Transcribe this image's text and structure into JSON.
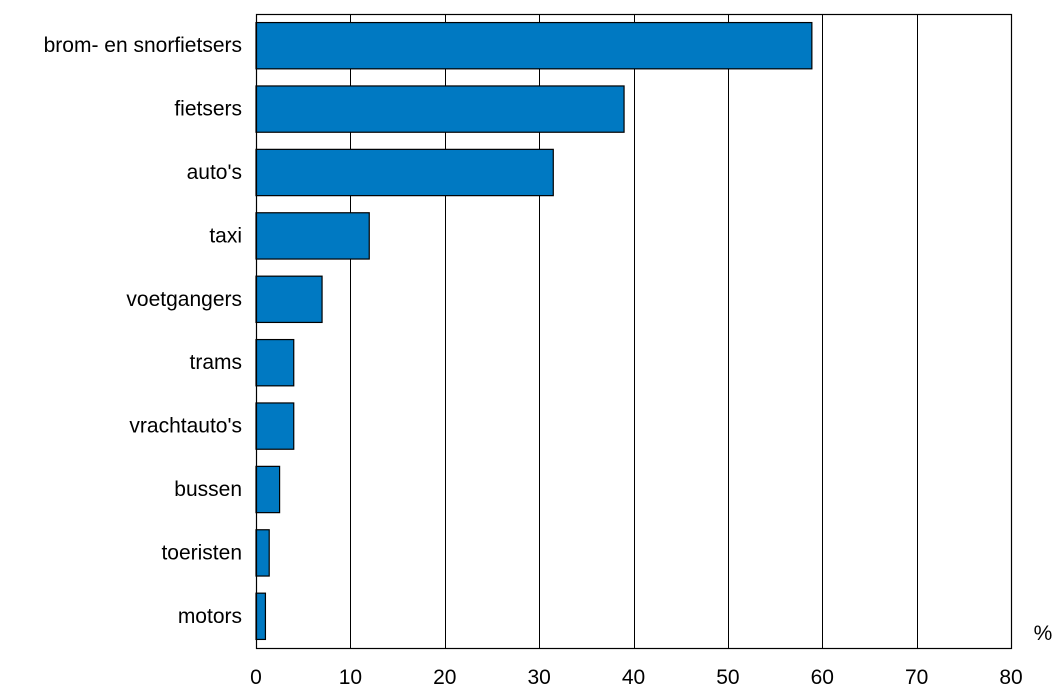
{
  "chart_data": {
    "type": "bar",
    "orientation": "horizontal",
    "title": "",
    "xlabel": "",
    "ylabel": "",
    "unit_label": "%",
    "categories": [
      "brom- en snorfietsers",
      "fietsers",
      "auto's",
      "taxi",
      "voetgangers",
      "trams",
      "vrachtauto's",
      "bussen",
      "toeristen",
      "motors"
    ],
    "values": [
      58.9,
      39.0,
      31.5,
      12.0,
      7.0,
      4.0,
      4.0,
      2.5,
      1.4,
      1.0
    ],
    "xlim": [
      0,
      80
    ],
    "x_ticks": [
      0,
      10,
      20,
      30,
      40,
      50,
      60,
      70,
      80
    ],
    "grid": true,
    "legend": "none",
    "bar_color": "#0079C2",
    "bar_edge_color": "#000000"
  }
}
